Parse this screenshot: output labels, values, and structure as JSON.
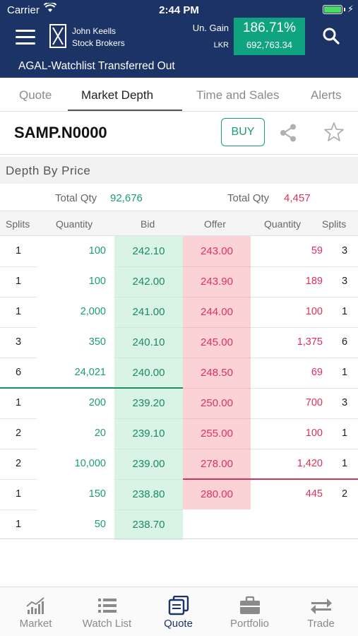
{
  "status_bar": {
    "carrier": "Carrier",
    "time": "2:44 PM"
  },
  "header": {
    "brand_line1": "John Keells",
    "brand_line2": "Stock Brokers",
    "gain_label": "Un. Gain",
    "currency": "LKR",
    "gain_percent": "186.71%",
    "gain_amount": "692,763.34",
    "ticker_message": "AGAL-Watchlist Transferred Out"
  },
  "tabs": [
    {
      "label": "Quote"
    },
    {
      "label": "Market Depth"
    },
    {
      "label": "Time and Sales"
    },
    {
      "label": "Alerts"
    }
  ],
  "active_tab": "Market Depth",
  "symbol": "SAMP.N0000",
  "buy_label": "BUY",
  "depth": {
    "section_title": "Depth By Price",
    "total_label": "Total Qty",
    "bid_total": "92,676",
    "offer_total": "4,457",
    "columns": [
      "Splits",
      "Quantity",
      "Bid",
      "Offer",
      "Quantity",
      "Splits"
    ],
    "bids": [
      {
        "splits": "1",
        "qty": "100",
        "price": "242.10"
      },
      {
        "splits": "1",
        "qty": "100",
        "price": "242.00"
      },
      {
        "splits": "1",
        "qty": "2,000",
        "price": "241.00"
      },
      {
        "splits": "3",
        "qty": "350",
        "price": "240.10"
      },
      {
        "splits": "6",
        "qty": "24,021",
        "price": "240.00"
      },
      {
        "splits": "1",
        "qty": "200",
        "price": "239.20"
      },
      {
        "splits": "2",
        "qty": "20",
        "price": "239.10"
      },
      {
        "splits": "2",
        "qty": "10,000",
        "price": "239.00"
      },
      {
        "splits": "1",
        "qty": "150",
        "price": "238.80"
      },
      {
        "splits": "1",
        "qty": "50",
        "price": "238.70"
      }
    ],
    "offers": [
      {
        "price": "243.00",
        "qty": "59",
        "splits": "3"
      },
      {
        "price": "243.90",
        "qty": "189",
        "splits": "3"
      },
      {
        "price": "244.00",
        "qty": "100",
        "splits": "1"
      },
      {
        "price": "245.00",
        "qty": "1,375",
        "splits": "6"
      },
      {
        "price": "248.50",
        "qty": "69",
        "splits": "1"
      },
      {
        "price": "250.00",
        "qty": "700",
        "splits": "3"
      },
      {
        "price": "255.00",
        "qty": "100",
        "splits": "1"
      },
      {
        "price": "278.00",
        "qty": "1,420",
        "splits": "1"
      },
      {
        "price": "280.00",
        "qty": "445",
        "splits": "2"
      }
    ]
  },
  "bottom_nav": [
    {
      "label": "Market",
      "icon": "chart-icon"
    },
    {
      "label": "Watch List",
      "icon": "list-icon"
    },
    {
      "label": "Quote",
      "icon": "quote-icon"
    },
    {
      "label": "Portfolio",
      "icon": "briefcase-icon"
    },
    {
      "label": "Trade",
      "icon": "trade-arrows-icon"
    }
  ],
  "active_nav": "Quote",
  "colors": {
    "header": "#1c3366",
    "green": "#1a9d77",
    "red": "#e0305a",
    "bid_bg": "#d9f3e4",
    "offer_bg": "#fbd3d6"
  }
}
